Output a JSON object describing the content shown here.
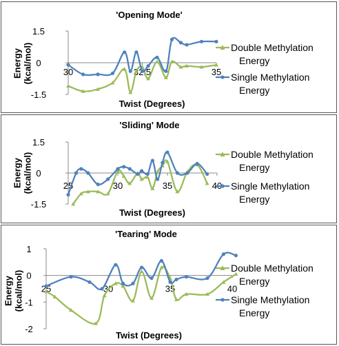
{
  "colors": {
    "double": "#9bbb59",
    "single": "#4f81bd",
    "axis": "#888888"
  },
  "chart_data": [
    {
      "type": "line",
      "title": "'Opening Mode'",
      "xlabel": "Twist (Degrees)",
      "ylabel": "Energy (kcal/mol)",
      "xlim": [
        30,
        35
      ],
      "ylim": [
        -1.5,
        1.5
      ],
      "x_ticks": [
        "30",
        "32.5",
        "35"
      ],
      "y_ticks": [
        "1.5",
        "0",
        "-1.5"
      ],
      "legend_position": "right",
      "series": [
        {
          "name": "Double Methylation Energy",
          "x": [
            30.0,
            30.5,
            31.0,
            31.5,
            31.9,
            32.1,
            32.3,
            32.5,
            32.7,
            33.0,
            33.3,
            33.5,
            33.8,
            34.0,
            34.5,
            35.0
          ],
          "values": [
            -1.1,
            -1.35,
            -1.25,
            -0.95,
            -0.3,
            -1.4,
            -0.4,
            -0.2,
            -0.75,
            0.05,
            -0.7,
            0.05,
            -0.2,
            -0.15,
            -0.2,
            -0.1
          ]
        },
        {
          "name": "Single Methylation Energy",
          "x": [
            30.0,
            30.5,
            31.0,
            31.5,
            31.9,
            32.1,
            32.3,
            32.5,
            32.7,
            33.0,
            33.3,
            33.5,
            33.8,
            34.0,
            34.5,
            35.0
          ],
          "values": [
            -0.1,
            -0.55,
            -0.55,
            -0.5,
            0.5,
            -0.4,
            0.5,
            -0.4,
            -0.15,
            0.25,
            -0.4,
            1.1,
            0.95,
            0.85,
            1.0,
            1.0
          ]
        }
      ]
    },
    {
      "type": "line",
      "title": "'Sliding' Mode",
      "xlabel": "Twist (Degrees)",
      "ylabel": "Energy (kcal/mol)",
      "xlim": [
        25,
        40
      ],
      "ylim": [
        -1.5,
        1.5
      ],
      "x_ticks": [
        "25",
        "30",
        "35",
        "40"
      ],
      "y_ticks": [
        "1.5",
        "0",
        "-1.5"
      ],
      "legend_position": "right",
      "series": [
        {
          "name": "Double Methylation Energy",
          "x": [
            25.5,
            26.3,
            27.0,
            28.0,
            29.0,
            30.0,
            30.6,
            31.2,
            32.0,
            32.4,
            33.0,
            33.5,
            34.0,
            34.5,
            35.0,
            36.0,
            37.0,
            38.0,
            39.0
          ],
          "values": [
            -1.5,
            -1.0,
            -0.9,
            -0.9,
            -1.0,
            0.1,
            -0.15,
            -0.5,
            0.0,
            -0.3,
            -0.2,
            -0.75,
            0.05,
            0.35,
            0.55,
            -0.9,
            0.05,
            0.4,
            -0.5
          ]
        },
        {
          "name": "Single Methylation Energy",
          "x": [
            25.0,
            25.8,
            26.3,
            27.0,
            28.0,
            29.0,
            30.0,
            30.6,
            31.2,
            32.0,
            32.4,
            33.0,
            33.5,
            34.0,
            34.5,
            35.0,
            36.0,
            37.0,
            38.0,
            39.0
          ],
          "values": [
            -1.05,
            0.0,
            0.2,
            0.0,
            -0.55,
            -0.3,
            0.2,
            0.3,
            0.2,
            -0.05,
            0.1,
            -0.05,
            0.6,
            -0.3,
            0.5,
            1.0,
            0.0,
            0.0,
            0.45,
            -0.05
          ]
        }
      ]
    },
    {
      "type": "line",
      "title": "'Tearing' Mode",
      "xlabel": "Twist (Degrees)",
      "ylabel": "Energy (kcal/mol)",
      "xlim": [
        25,
        40
      ],
      "ylim": [
        -2,
        1
      ],
      "x_ticks": [
        "25",
        "30",
        "35",
        "40"
      ],
      "y_ticks": [
        "1",
        "0",
        "-1",
        "-2"
      ],
      "legend_position": "right",
      "series": [
        {
          "name": "Double Methylation Energy",
          "x": [
            25.0,
            25.7,
            27.0,
            29.0,
            29.7,
            30.6,
            31.2,
            32.0,
            32.7,
            33.5,
            34.3,
            35.0,
            35.5,
            36.3,
            38.0,
            39.3,
            40.3
          ],
          "values": [
            -0.6,
            -0.8,
            -1.3,
            -1.8,
            -0.75,
            -0.3,
            -0.4,
            -0.95,
            0.15,
            -0.85,
            0.3,
            -0.1,
            -0.9,
            -0.7,
            -0.7,
            -0.25,
            0.05
          ]
        },
        {
          "name": "Single Methylation Energy",
          "x": [
            25.0,
            27.0,
            28.5,
            29.5,
            30.6,
            31.2,
            32.0,
            32.7,
            33.5,
            34.3,
            35.0,
            35.5,
            36.3,
            38.0,
            39.3,
            40.3
          ],
          "values": [
            -0.4,
            -0.05,
            -0.25,
            -0.5,
            0.4,
            -0.3,
            -0.3,
            0.3,
            -0.1,
            0.55,
            -0.25,
            -0.15,
            -0.05,
            -0.1,
            0.8,
            0.75
          ]
        }
      ]
    }
  ]
}
